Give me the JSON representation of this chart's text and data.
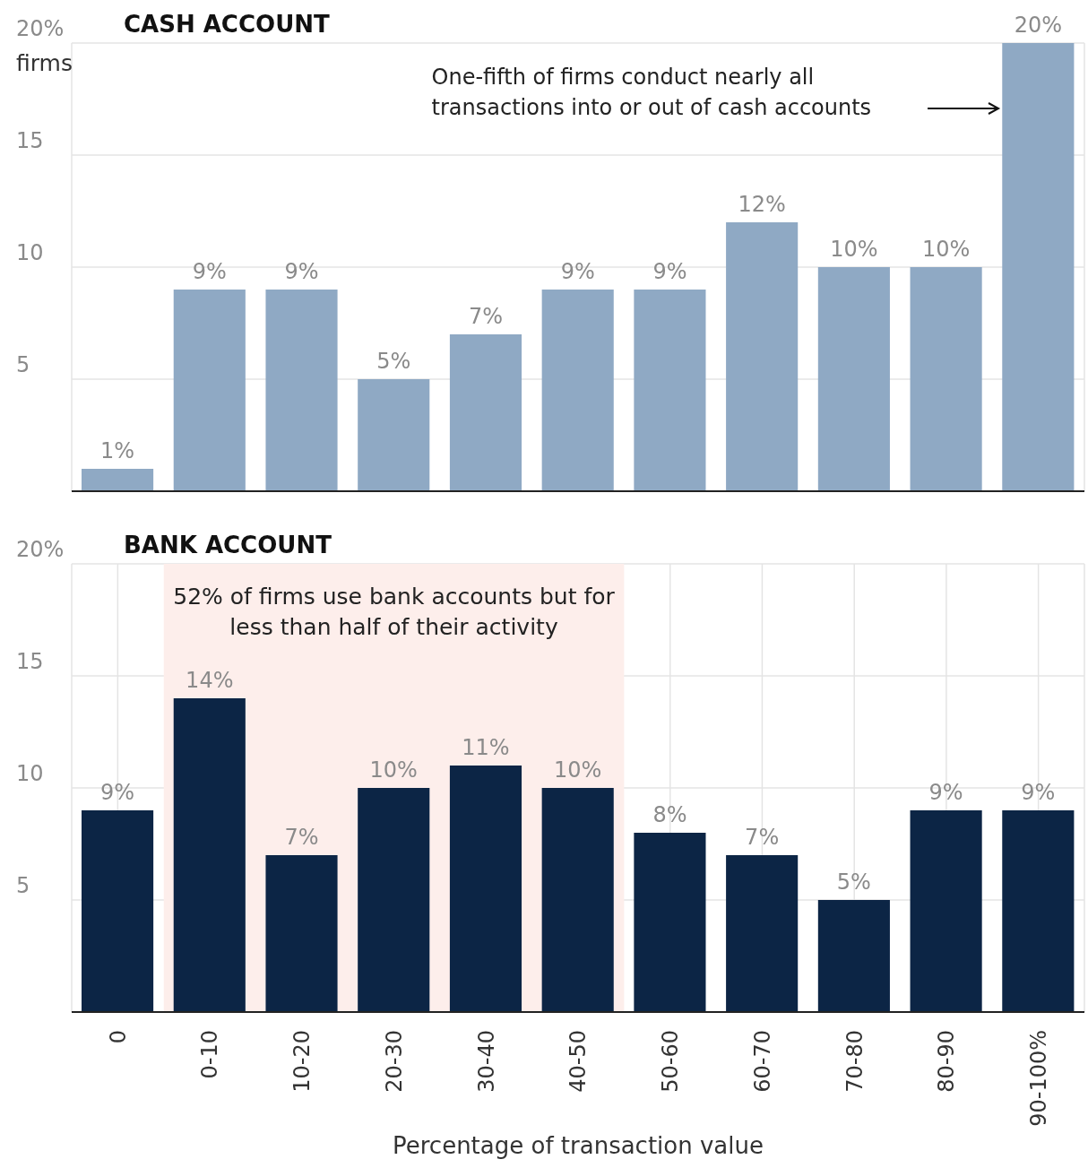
{
  "chart_data": [
    {
      "type": "bar",
      "title": "CASH ACCOUNT",
      "ylabel": "firms",
      "categories": [
        null,
        null,
        null,
        null,
        null,
        null,
        null,
        null,
        null,
        null,
        null
      ],
      "values": [
        1,
        9,
        9,
        5,
        7,
        9,
        9,
        12,
        10,
        10,
        20
      ],
      "color": "#8fa9c4",
      "value_labels": [
        "1%",
        "9%",
        "9%",
        "5%",
        "7%",
        "9%",
        "9%",
        "12%",
        "10%",
        "10%",
        "20%"
      ],
      "ylim": [
        0,
        20
      ],
      "yticks": [
        5,
        10,
        15,
        {
          "value": 20,
          "label": "20%"
        }
      ],
      "grid": true,
      "tick_labels": "y",
      "annotations": [
        "One-fifth of firms conduct nearly all transactions into or out of cash accounts"
      ]
    },
    {
      "type": "bar",
      "title": "BANK ACCOUNT",
      "xlabel": "Percentage of transaction value",
      "categories": [
        "0",
        "0-10",
        "10-20",
        "20-30",
        "30-40",
        "40-50",
        "50-60",
        "60-70",
        "70-80",
        "80-90",
        "90-100%"
      ],
      "values": [
        9,
        14,
        7,
        10,
        11,
        10,
        8,
        7,
        5,
        9,
        9
      ],
      "color": "#0c2545",
      "value_labels": [
        "9%",
        "14%",
        "7%",
        "10%",
        "11%",
        "10%",
        "8%",
        "7%",
        "5%",
        "9%",
        "9%"
      ],
      "ylim": [
        0,
        20
      ],
      "yticks": [
        5,
        10,
        15,
        {
          "value": 20,
          "label": "20%"
        }
      ],
      "grid": true,
      "bands": [
        {
          "axis": "x",
          "from": "0-10",
          "to": "40-50",
          "label": "52% of firms use bank accounts but for less than half of their activity",
          "color": "#fdeeeb"
        }
      ]
    }
  ]
}
